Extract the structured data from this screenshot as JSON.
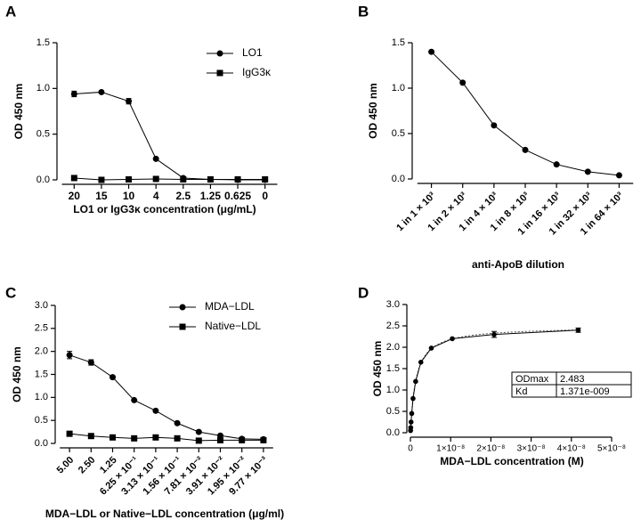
{
  "chart_data": [
    {
      "type": "line",
      "panel_label": "A",
      "x_label": "LO1 or IgG3κ concentration  (μg/mL)",
      "y_label": "OD 450 nm",
      "categories": [
        "20",
        "15",
        "10",
        "4",
        "2.5",
        "1.25",
        "0.625",
        "0"
      ],
      "series": [
        {
          "name": "LO1",
          "color": "#000000",
          "marker": "circle",
          "values": [
            0.94,
            0.96,
            0.86,
            0.23,
            0.02,
            0.005,
            0.0,
            0.0
          ],
          "errors": [
            0.03,
            0.01,
            0.03,
            null,
            null,
            null,
            null,
            null
          ]
        },
        {
          "name": "IgG3κ",
          "color": "#000000",
          "marker": "square",
          "values": [
            0.02,
            0.0,
            0.005,
            0.01,
            0.005,
            0.005,
            0.005,
            0.005
          ],
          "errors": [
            null,
            null,
            null,
            null,
            null,
            null,
            null,
            null
          ]
        }
      ],
      "ylim": [
        0,
        1.5
      ],
      "yticks": [
        {
          "value": 0,
          "label": "0.0"
        },
        0.5,
        {
          "value": 1,
          "label": "1.0"
        },
        1.5
      ],
      "legend": "upper right"
    },
    {
      "type": "line",
      "panel_label": "B",
      "x_label": "anti-ApoB dilution",
      "y_label": "OD 450 nm",
      "categories": [
        "1 in 1 × 10³",
        "1 in 2 × 10³",
        "1 in 4 × 10³",
        "1 in 8 × 10³",
        "1 in 16 × 10³",
        "1 in 32 × 10³",
        "1 in 64 × 10³"
      ],
      "series": [
        {
          "color": "#000000",
          "marker": "circle",
          "values": [
            1.4,
            1.06,
            0.59,
            0.32,
            0.16,
            0.08,
            0.04
          ],
          "errors": [
            null,
            null,
            null,
            null,
            null,
            null,
            null
          ]
        }
      ],
      "ylim": [
        0,
        1.5
      ],
      "yticks": [
        {
          "value": 0,
          "label": "0.0"
        },
        0.5,
        {
          "value": 1,
          "label": "1.0"
        },
        1.5
      ]
    },
    {
      "type": "line",
      "panel_label": "C",
      "x_label": "MDA−LDL or Native−LDL concentration (μg/ml)",
      "y_label": "OD 450 nm",
      "categories": [
        "5.00",
        "2.50",
        "1.25",
        "6.25 × 10⁻¹",
        "3.13 × 10⁻¹",
        "1.56 × 10⁻¹",
        "7.81 × 10⁻²",
        "3.91 × 10⁻²",
        "1.95 × 10⁻²",
        "9.77 × 10⁻³"
      ],
      "series": [
        {
          "name": "MDA−LDL",
          "color": "#000000",
          "marker": "circle",
          "values": [
            1.92,
            1.76,
            1.44,
            0.94,
            0.71,
            0.44,
            0.25,
            0.17,
            0.1,
            0.09
          ],
          "errors": [
            0.08,
            0.06,
            null,
            null,
            null,
            null,
            null,
            null,
            null,
            null
          ]
        },
        {
          "name": "Native−LDL",
          "color": "#000000",
          "marker": "square",
          "values": [
            0.21,
            0.16,
            0.13,
            0.11,
            0.13,
            0.11,
            0.06,
            0.07,
            0.07,
            0.07
          ],
          "errors": [
            null,
            null,
            null,
            null,
            null,
            null,
            null,
            null,
            null,
            null
          ]
        }
      ],
      "ylim": [
        0,
        3
      ],
      "yticks": [
        {
          "value": 0,
          "label": "0.0"
        },
        0.5,
        {
          "value": 1,
          "label": "1.0"
        },
        1.5,
        {
          "value": 2,
          "label": "2.0"
        },
        2.5,
        {
          "value": 3,
          "label": "3.0"
        }
      ],
      "legend": "upper right"
    },
    {
      "type": "scatter",
      "panel_label": "D",
      "x_label": "MDA−LDL concentration  (M)",
      "y_label": "OD 450 nm",
      "x": [
        4.17e-08,
        2.08e-08,
        1.04e-08,
        5.2e-09,
        2.6e-09,
        1.3e-09,
        6.5e-10,
        3.3e-10,
        1.6e-10,
        8e-11,
        4e-11
      ],
      "values": [
        2.4,
        2.3,
        2.2,
        1.98,
        1.65,
        1.2,
        0.8,
        0.45,
        0.25,
        0.12,
        0.05
      ],
      "errors": [
        0.05,
        0.07,
        null,
        null,
        null,
        null,
        null,
        null,
        null,
        null,
        null
      ],
      "color": "#000000",
      "xlim": [
        0,
        5e-08
      ],
      "xticks": [
        0,
        {
          "value": 1e-08,
          "label": "1×10⁻⁸"
        },
        {
          "value": 2e-08,
          "label": "2×10⁻⁸"
        },
        {
          "value": 3e-08,
          "label": "3×10⁻⁸"
        },
        {
          "value": 4e-08,
          "label": "4×10⁻⁸"
        },
        {
          "value": 5e-08,
          "label": "5×10⁻⁸"
        }
      ],
      "ylim": [
        0,
        3
      ],
      "yticks": [
        {
          "value": 0,
          "label": "0.0"
        },
        0.5,
        {
          "value": 1,
          "label": "1.0"
        },
        1.5,
        {
          "value": 2,
          "label": "2.0"
        },
        2.5,
        {
          "value": 3,
          "label": "3.0"
        }
      ],
      "fit_table": [
        [
          "ODmax",
          2.483
        ],
        [
          "Kd",
          {
            "value": 1.371e-09,
            "label": "1.371e-009"
          }
        ]
      ]
    }
  ]
}
